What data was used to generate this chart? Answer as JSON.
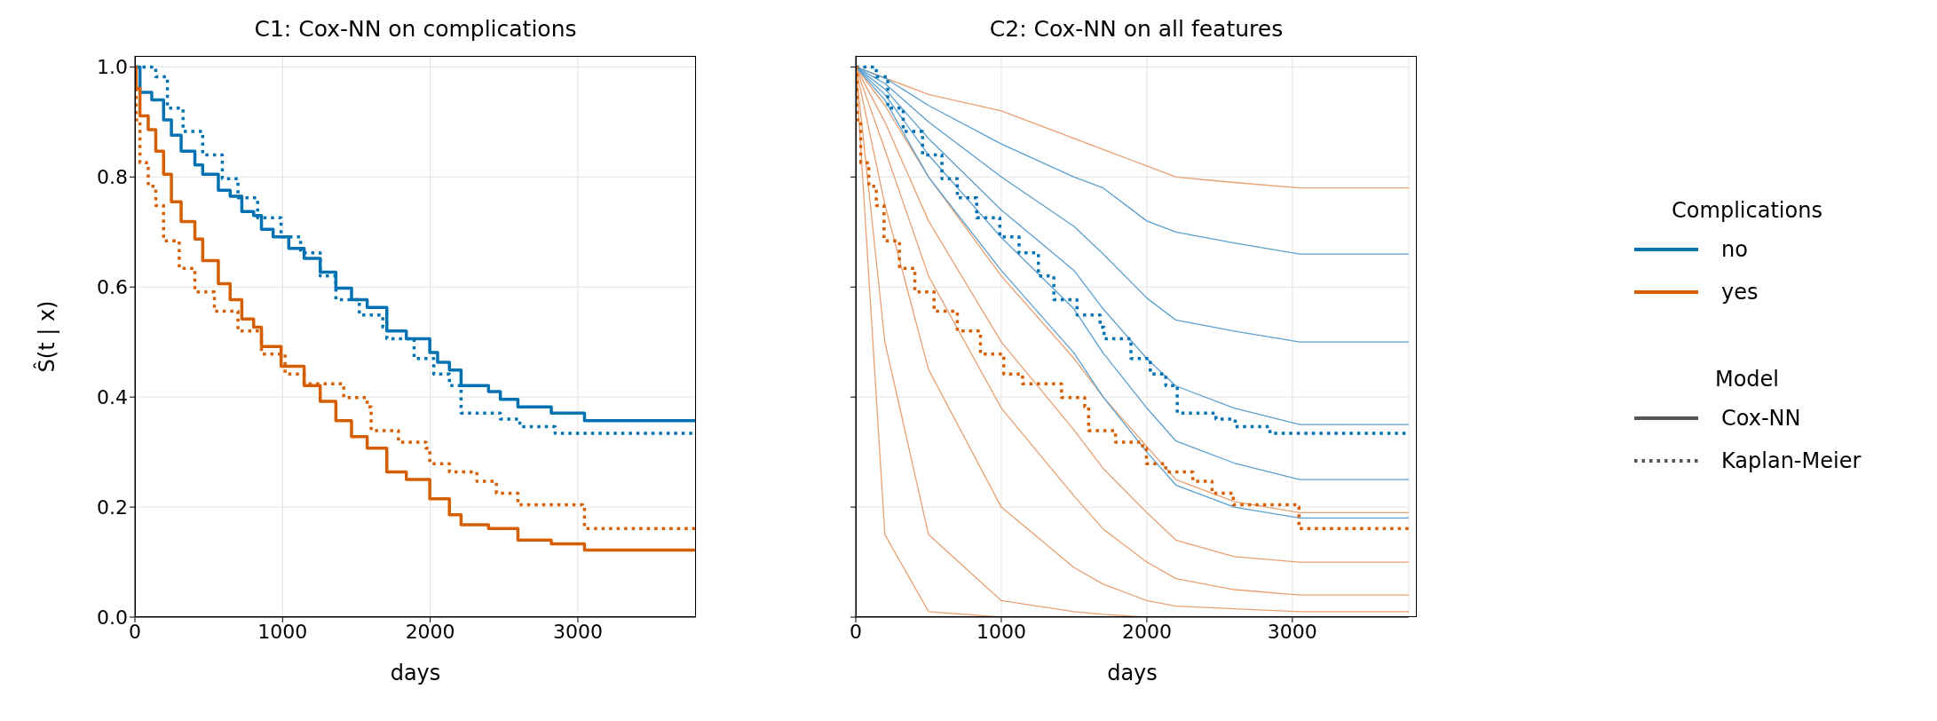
{
  "chart_data": [
    {
      "type": "step",
      "title": "C1: Cox-NN on complications",
      "xlabel": "days",
      "ylabel": "Ŝ(t | x)",
      "legend_title": "Complications",
      "legend": "right",
      "grid": true,
      "xlim": [
        0,
        3800
      ],
      "xticks": [
        0,
        1000,
        2000,
        3000
      ],
      "ylim": [
        0,
        1.02
      ],
      "yticks": [
        {
          "value": 0,
          "label": "0.0"
        },
        {
          "value": 0.2,
          "label": "0.2"
        },
        {
          "value": 0.4,
          "label": "0.4"
        },
        {
          "value": 0.6,
          "label": "0.6"
        },
        {
          "value": 0.8,
          "label": "0.8"
        },
        {
          "value": 1,
          "label": "1.0"
        }
      ],
      "series": [
        {
          "name": "no",
          "color": "#0072b2",
          "line_style": "solid",
          "x": [
            0,
            34,
            114,
            194,
            247,
            313,
            406,
            459,
            565,
            645,
            724,
            804,
            857,
            936,
            1042,
            1146,
            1255,
            1361,
            1467,
            1573,
            1706,
            1706,
            1838,
            1997,
            2050,
            2130,
            2209,
            2395,
            2475,
            2594,
            2820,
            3045,
            3800
          ],
          "values": [
            1.0,
            0.954,
            0.94,
            0.904,
            0.876,
            0.847,
            0.822,
            0.805,
            0.776,
            0.765,
            0.737,
            0.73,
            0.705,
            0.691,
            0.67,
            0.652,
            0.627,
            0.598,
            0.577,
            0.563,
            0.542,
            0.52,
            0.506,
            0.481,
            0.463,
            0.449,
            0.421,
            0.41,
            0.396,
            0.382,
            0.371,
            0.357,
            0.357
          ]
        },
        {
          "name": "yes",
          "color": "#d55e00",
          "line_style": "solid",
          "x": [
            0,
            8,
            34,
            90,
            141,
            194,
            247,
            313,
            406,
            459,
            565,
            645,
            724,
            804,
            857,
            990,
            1146,
            1255,
            1361,
            1467,
            1573,
            1706,
            1838,
            1997,
            2130,
            2209,
            2395,
            2594,
            2820,
            3045,
            3800
          ],
          "values": [
            1.0,
            0.961,
            0.911,
            0.886,
            0.847,
            0.805,
            0.755,
            0.719,
            0.687,
            0.648,
            0.606,
            0.577,
            0.542,
            0.527,
            0.492,
            0.456,
            0.421,
            0.392,
            0.357,
            0.328,
            0.307,
            0.264,
            0.25,
            0.215,
            0.186,
            0.168,
            0.161,
            0.14,
            0.133,
            0.122,
            0.122
          ]
        },
        {
          "color": "#0072b2",
          "line_style": "dotted",
          "x": [
            0,
            74,
            141,
            220,
            326,
            459,
            592,
            698,
            831,
            990,
            1122,
            1255,
            1361,
            1520,
            1679,
            1706,
            1891,
            2024,
            2130,
            2209,
            2475,
            2607,
            2846,
            3800
          ],
          "values": [
            1.0,
            1.0,
            0.982,
            0.925,
            0.883,
            0.84,
            0.797,
            0.762,
            0.726,
            0.691,
            0.662,
            0.62,
            0.577,
            0.549,
            0.527,
            0.506,
            0.47,
            0.442,
            0.421,
            0.371,
            0.36,
            0.346,
            0.334,
            0.334
          ]
        },
        {
          "color": "#d55e00",
          "line_style": "dotted",
          "x": [
            0,
            8,
            34,
            90,
            141,
            194,
            300,
            406,
            538,
            698,
            857,
            1017,
            1146,
            1414,
            1573,
            1600,
            1785,
            1971,
            1997,
            2130,
            2316,
            2448,
            2594,
            3032,
            3045,
            3800
          ],
          "values": [
            1.0,
            0.904,
            0.826,
            0.783,
            0.748,
            0.684,
            0.634,
            0.591,
            0.556,
            0.52,
            0.478,
            0.442,
            0.424,
            0.399,
            0.382,
            0.339,
            0.318,
            0.307,
            0.279,
            0.264,
            0.247,
            0.225,
            0.204,
            0.2,
            0.161,
            0.161
          ]
        }
      ]
    },
    {
      "type": "line",
      "title": "C2: Cox-NN on all features",
      "xlabel": "days",
      "grid": true,
      "tick_labels": "x",
      "xlim": [
        0,
        3800
      ],
      "xticks": [
        0,
        1000,
        2000,
        3000
      ],
      "ylim": [
        0,
        1.02
      ],
      "yticks": [
        {
          "value": 0,
          "label": null
        },
        {
          "value": 0.2,
          "label": null
        },
        {
          "value": 0.4,
          "label": null
        },
        {
          "value": 0.6,
          "label": null
        },
        {
          "value": 0.8,
          "label": null
        },
        {
          "value": 1,
          "label": null
        }
      ],
      "x": [
        0,
        200,
        500,
        1000,
        1500,
        1700,
        2000,
        2200,
        2600,
        3050,
        3800
      ],
      "series": [
        {
          "color": "#e8a070",
          "values": [
            1,
            0.98,
            0.95,
            0.92,
            0.87,
            0.85,
            0.82,
            0.8,
            0.79,
            0.78,
            0.78
          ]
        },
        {
          "color": "#e8a070",
          "values": [
            1,
            0.93,
            0.8,
            0.62,
            0.47,
            0.4,
            0.31,
            0.25,
            0.21,
            0.19,
            0.19
          ]
        },
        {
          "color": "#e8a070",
          "values": [
            1,
            0.9,
            0.72,
            0.5,
            0.34,
            0.27,
            0.19,
            0.14,
            0.11,
            0.1,
            0.1
          ]
        },
        {
          "color": "#e8a070",
          "values": [
            1,
            0.85,
            0.62,
            0.38,
            0.22,
            0.16,
            0.1,
            0.07,
            0.05,
            0.04,
            0.04
          ]
        },
        {
          "color": "#e8a070",
          "values": [
            1,
            0.75,
            0.45,
            0.2,
            0.09,
            0.06,
            0.03,
            0.02,
            0.015,
            0.01,
            0.01
          ]
        },
        {
          "color": "#e8a070",
          "values": [
            1,
            0.5,
            0.15,
            0.03,
            0.01,
            0.005,
            0,
            0,
            null,
            null,
            null
          ]
        },
        {
          "color": "#e8a070",
          "values": [
            1,
            0.15,
            0.01,
            0,
            0,
            0,
            0,
            0,
            null,
            null,
            null
          ]
        },
        {
          "color": "#5a9fd0",
          "values": [
            1,
            0.98,
            0.93,
            0.86,
            0.8,
            0.78,
            0.72,
            0.7,
            0.68,
            0.66,
            0.66
          ]
        },
        {
          "color": "#5a9fd0",
          "values": [
            1,
            0.97,
            0.9,
            0.8,
            0.71,
            0.66,
            0.58,
            0.54,
            0.52,
            0.5,
            0.5
          ]
        },
        {
          "color": "#5a9fd0",
          "values": [
            1,
            0.96,
            0.87,
            0.74,
            0.63,
            0.56,
            0.47,
            0.42,
            0.38,
            0.35,
            0.35
          ]
        },
        {
          "color": "#5a9fd0",
          "values": [
            1,
            0.95,
            0.84,
            0.69,
            0.56,
            0.48,
            0.38,
            0.32,
            0.28,
            0.25,
            0.25
          ]
        },
        {
          "color": "#5a9fd0",
          "values": [
            1,
            0.94,
            0.8,
            0.63,
            0.48,
            0.4,
            0.3,
            0.24,
            0.2,
            0.18,
            0.18
          ]
        },
        {
          "type": "step",
          "color": "#0072b2",
          "line_style": "dotted",
          "x": [
            0,
            74,
            141,
            220,
            326,
            459,
            592,
            698,
            831,
            990,
            1122,
            1255,
            1361,
            1520,
            1679,
            1706,
            1891,
            2024,
            2130,
            2209,
            2475,
            2607,
            2846,
            3800
          ],
          "values": [
            1.0,
            1.0,
            0.982,
            0.925,
            0.883,
            0.84,
            0.797,
            0.762,
            0.726,
            0.691,
            0.662,
            0.62,
            0.577,
            0.549,
            0.527,
            0.506,
            0.47,
            0.442,
            0.421,
            0.371,
            0.36,
            0.346,
            0.334,
            0.334
          ]
        },
        {
          "type": "step",
          "color": "#d55e00",
          "line_style": "dotted",
          "x": [
            0,
            8,
            34,
            90,
            141,
            194,
            300,
            406,
            538,
            698,
            857,
            1017,
            1146,
            1414,
            1573,
            1600,
            1785,
            1971,
            1997,
            2130,
            2316,
            2448,
            2594,
            3032,
            3045,
            3800
          ],
          "values": [
            1.0,
            0.904,
            0.826,
            0.783,
            0.748,
            0.684,
            0.634,
            0.591,
            0.556,
            0.52,
            0.478,
            0.442,
            0.424,
            0.399,
            0.382,
            0.339,
            0.318,
            0.307,
            0.279,
            0.264,
            0.247,
            0.225,
            0.204,
            0.2,
            0.161,
            0.161
          ]
        }
      ]
    },
    {
      "type": "other",
      "legend_title": "Model",
      "annotations": [
        "Cox-NN",
        "Kaplan-Meier"
      ]
    }
  ]
}
